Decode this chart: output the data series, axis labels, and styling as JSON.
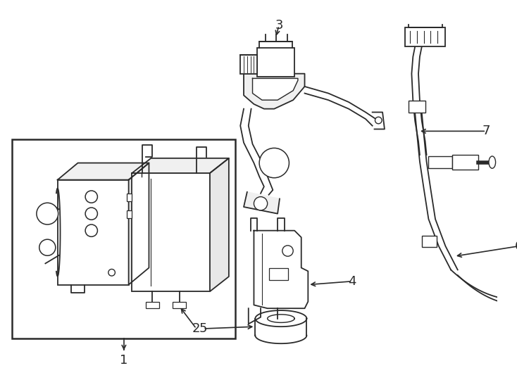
{
  "bg_color": "#ffffff",
  "line_color": "#2a2a2a",
  "lw": 1.3,
  "fig_w": 7.34,
  "fig_h": 5.4,
  "dpi": 100
}
